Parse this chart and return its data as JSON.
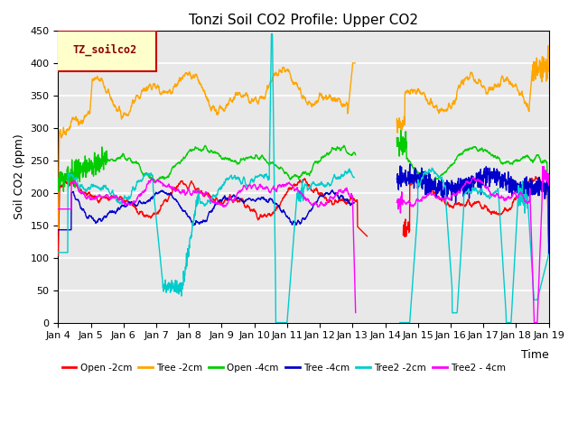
{
  "title": "Tonzi Soil CO2 Profile: Upper CO2",
  "ylabel": "Soil CO2 (ppm)",
  "xlabel": "Time",
  "ylim": [
    0,
    450
  ],
  "yticks": [
    0,
    50,
    100,
    150,
    200,
    250,
    300,
    350,
    400,
    450
  ],
  "background_color": "#e8e8e8",
  "fig_color": "#ffffff",
  "legend_box_color": "#ffffcc",
  "legend_box_edge": "#cc0000",
  "legend_label": "TZ_soilco2",
  "series": [
    {
      "label": "Open -2cm",
      "color": "#ff0000"
    },
    {
      "label": "Tree -2cm",
      "color": "#ffa500"
    },
    {
      "label": "Open -4cm",
      "color": "#00cc00"
    },
    {
      "label": "Tree -4cm",
      "color": "#0000cc"
    },
    {
      "label": "Tree2 -2cm",
      "color": "#00cccc"
    },
    {
      "label": "Tree2 - 4cm",
      "color": "#ff00ff"
    }
  ],
  "xtick_labels": [
    "Jan 4",
    "Jan 5",
    "Jan 6",
    "Jan 7",
    "Jan 8",
    "Jan 9",
    "Jan 10",
    "Jan 11",
    "Jan 12",
    "Jan 13",
    "Jan 14",
    "Jan 15",
    "Jan 16",
    "Jan 17",
    "Jan 18",
    "Jan 19"
  ],
  "title_fontsize": 11,
  "axis_fontsize": 9,
  "tick_fontsize": 8
}
